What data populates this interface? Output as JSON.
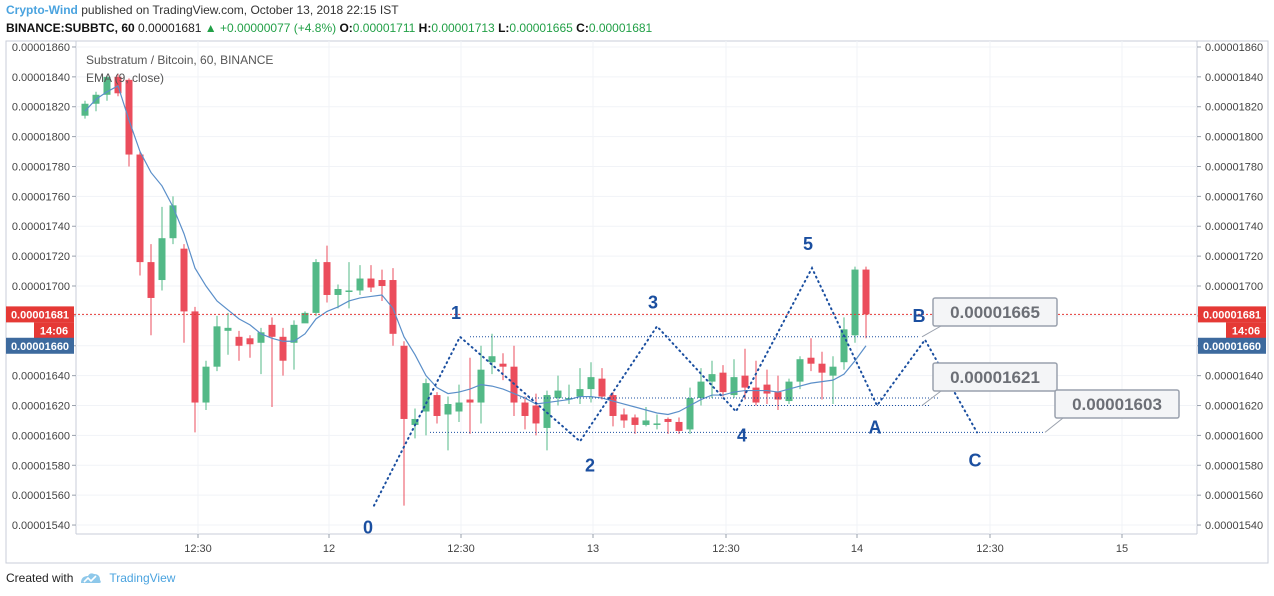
{
  "header": {
    "author": "Crypto-Wind",
    "published": "published on TradingView.com, October 13, 2018 22:15 IST",
    "symbol_interval": "BINANCE:SUBBTC, 60",
    "last": "0.00001681",
    "change": "+0.00000077 (+4.8%)",
    "open_label": "O:",
    "open": "0.00001711",
    "high_label": "H:",
    "high": "0.00001713",
    "low_label": "L:",
    "low": "0.00001665",
    "close_label": "C:",
    "close": "0.00001681"
  },
  "legend": {
    "title": "Substratum / Bitcoin, 60, BINANCE",
    "indicator": "EMA (9, close)"
  },
  "footer": {
    "created_with": "Created with",
    "brand": "TradingView"
  },
  "colors": {
    "up": "#53b987",
    "down": "#eb4d5c",
    "ema": "#5b8fc9",
    "wave": "#1b4fa0",
    "price_line": "#e53935",
    "ema_badge": "#3d6a9e"
  },
  "chart_data": {
    "type": "candlestick",
    "title": "Substratum / Bitcoin, 60, BINANCE",
    "ylim": [
      1.534e-05,
      1.864e-05
    ],
    "y_ticks": [
      "0.00001860",
      "0.00001840",
      "0.00001820",
      "0.00001800",
      "0.00001780",
      "0.00001760",
      "0.00001740",
      "0.00001720",
      "0.00001700",
      "0.00001680",
      "0.00001660",
      "0.00001640",
      "0.00001620",
      "0.00001600",
      "0.00001580",
      "0.00001560",
      "0.00001540"
    ],
    "x_ticks": [
      "12:30",
      "12",
      "12:30",
      "13",
      "12:30",
      "14",
      "12:30",
      "15"
    ],
    "current_price": {
      "value": "0.00001681",
      "countdown": "14:06"
    },
    "ema_value": "0.00001660",
    "ohlc_candles": [
      [
        1814,
        1822,
        1812,
        1824
      ],
      [
        1822,
        1828,
        1817,
        1830
      ],
      [
        1828,
        1840,
        1824,
        1841
      ],
      [
        1840,
        1829,
        1827,
        1842
      ],
      [
        1838,
        1788,
        1780,
        1839
      ],
      [
        1788,
        1716,
        1707,
        1790
      ],
      [
        1716,
        1692,
        1667,
        1728
      ],
      [
        1704,
        1732,
        1697,
        1753
      ],
      [
        1732,
        1754,
        1728,
        1760
      ],
      [
        1725,
        1683,
        1662,
        1728
      ],
      [
        1683,
        1622,
        1602,
        1686
      ],
      [
        1622,
        1646,
        1617,
        1650
      ],
      [
        1646,
        1673,
        1643,
        1680
      ],
      [
        1670,
        1672,
        1654,
        1682
      ],
      [
        1666,
        1660,
        1650,
        1670
      ],
      [
        1665,
        1661,
        1652,
        1667
      ],
      [
        1662,
        1669,
        1641,
        1672
      ],
      [
        1674,
        1666,
        1619,
        1679
      ],
      [
        1666,
        1650,
        1640,
        1672
      ],
      [
        1662,
        1674,
        1644,
        1677
      ],
      [
        1675,
        1682,
        1676,
        1683
      ],
      [
        1682,
        1716,
        1680,
        1718
      ],
      [
        1716,
        1694,
        1689,
        1727
      ],
      [
        1694,
        1698,
        1685,
        1701
      ],
      [
        1697,
        1697,
        1685,
        1716
      ],
      [
        1697,
        1705,
        1694,
        1714
      ],
      [
        1705,
        1699,
        1696,
        1714
      ],
      [
        1704,
        1700,
        1690,
        1711
      ],
      [
        1704,
        1668,
        1660,
        1712
      ],
      [
        1660,
        1611,
        1553,
        1663
      ],
      [
        1607,
        1611,
        1598,
        1618
      ],
      [
        1616,
        1635,
        1600,
        1638
      ],
      [
        1627,
        1613,
        1608,
        1629
      ],
      [
        1614,
        1621,
        1590,
        1626
      ],
      [
        1616,
        1622,
        1609,
        1634
      ],
      [
        1624,
        1622,
        1601,
        1652
      ],
      [
        1622,
        1644,
        1608,
        1660
      ],
      [
        1649,
        1653,
        1641,
        1668
      ],
      [
        1648,
        1646,
        1637,
        1655
      ],
      [
        1646,
        1622,
        1613,
        1660
      ],
      [
        1622,
        1613,
        1604,
        1626
      ],
      [
        1620,
        1608,
        1600,
        1628
      ],
      [
        1605,
        1627,
        1590,
        1630
      ],
      [
        1625,
        1630,
        1620,
        1640
      ],
      [
        1625,
        1625,
        1621,
        1634
      ],
      [
        1626,
        1631,
        1621,
        1645
      ],
      [
        1631,
        1639,
        1622,
        1649
      ],
      [
        1638,
        1626,
        1624,
        1645
      ],
      [
        1627,
        1613,
        1606,
        1629
      ],
      [
        1614,
        1610,
        1605,
        1618
      ],
      [
        1612,
        1607,
        1601,
        1614
      ],
      [
        1607,
        1610,
        1606,
        1619
      ],
      [
        1608,
        1608,
        1604,
        1614
      ],
      [
        1611,
        1609,
        1601,
        1612
      ],
      [
        1609,
        1603,
        1601,
        1612
      ],
      [
        1604,
        1625,
        1601,
        1632
      ],
      [
        1625,
        1636,
        1620,
        1645
      ],
      [
        1636,
        1641,
        1625,
        1650
      ],
      [
        1642,
        1629,
        1626,
        1647
      ],
      [
        1627,
        1639,
        1625,
        1651
      ],
      [
        1640,
        1632,
        1624,
        1658
      ],
      [
        1632,
        1622,
        1620,
        1650
      ],
      [
        1634,
        1628,
        1621,
        1644
      ],
      [
        1629,
        1624,
        1617,
        1640
      ],
      [
        1623,
        1636,
        1621,
        1638
      ],
      [
        1636,
        1651,
        1631,
        1653
      ],
      [
        1652,
        1648,
        1643,
        1665
      ],
      [
        1648,
        1642,
        1624,
        1656
      ],
      [
        1640,
        1646,
        1621,
        1653
      ],
      [
        1649,
        1671,
        1644,
        1679
      ],
      [
        1667,
        1711,
        1662,
        1713
      ],
      [
        1711,
        1681,
        1665,
        1713
      ]
    ],
    "ema": [
      1817,
      1825,
      1830,
      1834,
      1811,
      1790,
      1776,
      1767,
      1753,
      1735,
      1712,
      1700,
      1690,
      1684,
      1678,
      1674,
      1668,
      1665,
      1663,
      1663,
      1668,
      1678,
      1683,
      1686,
      1690,
      1692,
      1693,
      1694,
      1685,
      1666,
      1654,
      1640,
      1632,
      1628,
      1629,
      1631,
      1634,
      1633,
      1631,
      1628,
      1625,
      1621,
      1622,
      1623,
      1624,
      1626,
      1626,
      1625,
      1623,
      1621,
      1619,
      1617,
      1615,
      1614,
      1616,
      1620,
      1624,
      1627,
      1627,
      1629,
      1630,
      1630,
      1630,
      1629,
      1631,
      1633,
      1635,
      1636,
      1637,
      1641,
      1650,
      1660
    ],
    "elliott_labels": [
      "0",
      "1",
      "2",
      "3",
      "4",
      "5",
      "A",
      "B",
      "C"
    ],
    "elliott_wave_prices": [
      1553,
      1666,
      1596,
      1673,
      1616,
      1712,
      1620,
      1664,
      1602
    ],
    "targets": [
      "0.00001665",
      "0.00001621",
      "0.00001603"
    ]
  }
}
